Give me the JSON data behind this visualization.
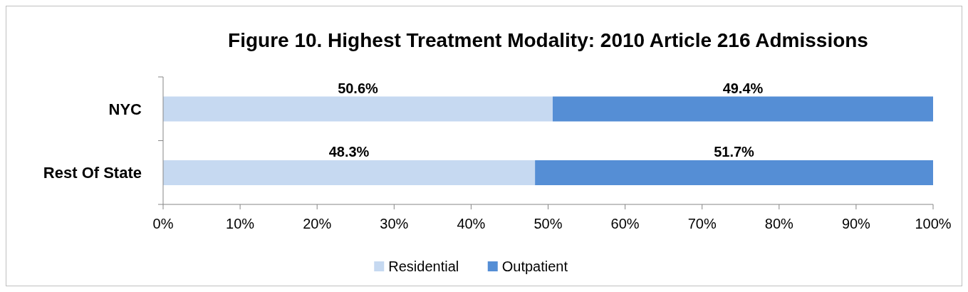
{
  "chart_data": {
    "type": "bar",
    "orientation": "horizontal",
    "stacked": true,
    "title": "Figure 10. Highest Treatment Modality:  2010 Article 216 Admissions",
    "categories": [
      "NYC",
      "Rest Of State"
    ],
    "series": [
      {
        "name": "Residential",
        "color": "#c6d9f1",
        "values": [
          50.6,
          48.3
        ],
        "value_labels": [
          "50.6%",
          "48.3%"
        ]
      },
      {
        "name": "Outpatient",
        "color": "#558ed5",
        "values": [
          49.4,
          51.7
        ],
        "value_labels": [
          "49.4%",
          "51.7%"
        ]
      }
    ],
    "xlim": [
      0,
      100
    ],
    "xticks": [
      {
        "value": 0,
        "label": "0%"
      },
      {
        "value": 10,
        "label": "10%"
      },
      {
        "value": 20,
        "label": "20%"
      },
      {
        "value": 30,
        "label": "30%"
      },
      {
        "value": 40,
        "label": "40%"
      },
      {
        "value": 50,
        "label": "50%"
      },
      {
        "value": 60,
        "label": "60%"
      },
      {
        "value": 70,
        "label": "70%"
      },
      {
        "value": 80,
        "label": "80%"
      },
      {
        "value": 90,
        "label": "90%"
      },
      {
        "value": 100,
        "label": "100%"
      }
    ],
    "grid": false,
    "legend": "bottom"
  }
}
